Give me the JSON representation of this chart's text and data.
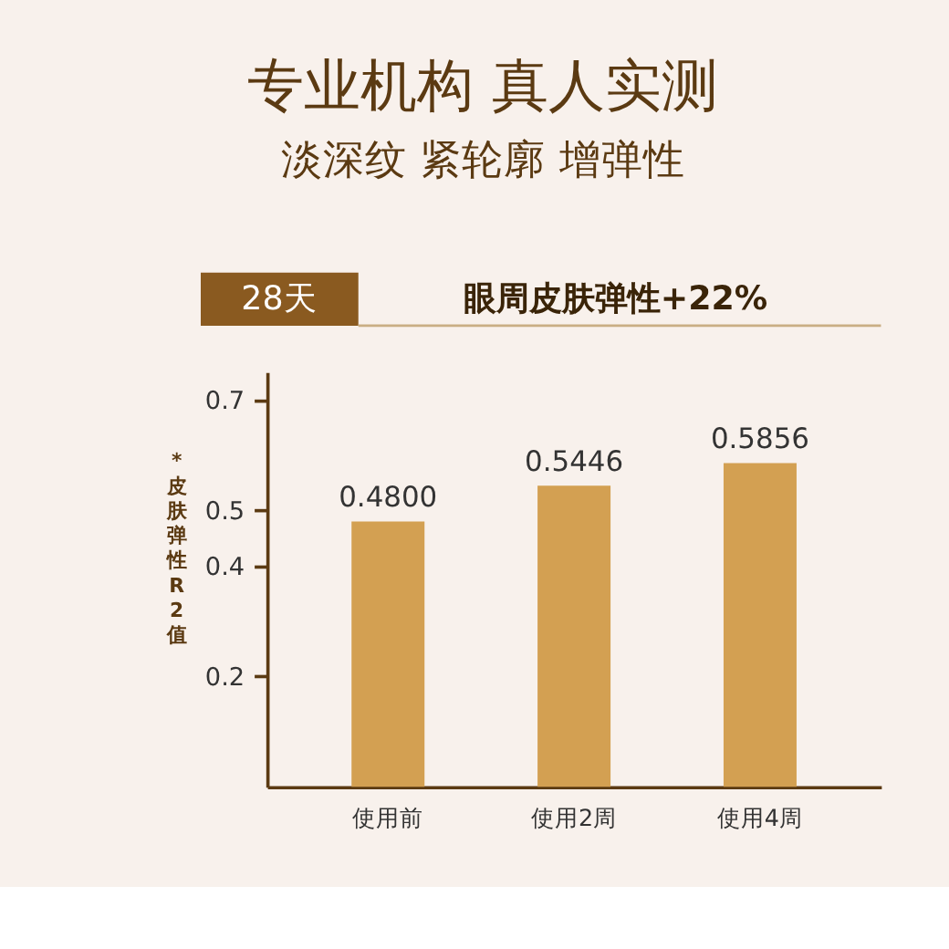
{
  "chart_data": {
    "type": "bar",
    "title": "专业机构  真人实测",
    "subtitle": "淡深纹 紧轮廓 增弹性",
    "annotations": [
      "28天",
      "眼周皮肤弹性+22%"
    ],
    "ylabel": "*皮肤弹性R2值",
    "categories": [
      "使用前",
      "使用2周",
      "使用4周"
    ],
    "values": [
      0.48,
      0.5446,
      0.5856
    ],
    "value_labels": [
      "0.4800",
      "0.5446",
      "0.5856"
    ],
    "color": "#d3a052",
    "ylim": [
      0,
      0.75
    ],
    "yticks": [
      0.2,
      0.4,
      0.5,
      0.7
    ],
    "grid": false
  }
}
